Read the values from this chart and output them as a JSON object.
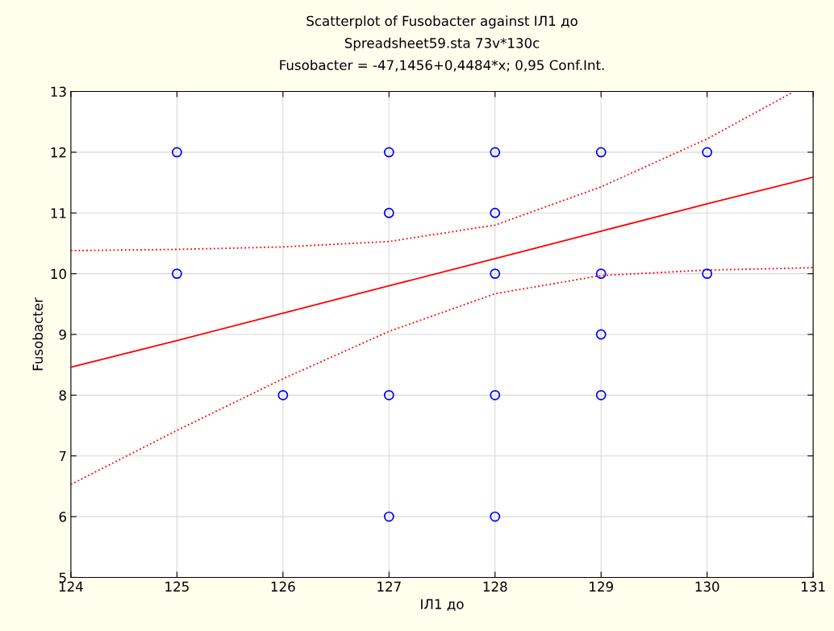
{
  "chart_data": {
    "type": "scatter",
    "title": "Scatterplot of Fusobacter against ІЛ1 до",
    "subtitle": "Spreadsheet59.sta 73v*130c",
    "annotations": [
      "Fusobacter = -47,1456+0,4484*x; 0,95 Conf.Int."
    ],
    "xlabel": "ІЛ1 до",
    "ylabel": "Fusobacter",
    "xlim": [
      124,
      131
    ],
    "xticks": [
      124,
      125,
      126,
      127,
      128,
      129,
      130,
      131
    ],
    "ylim": [
      5,
      13
    ],
    "yticks": [
      5,
      6,
      7,
      8,
      9,
      10,
      11,
      12,
      13
    ],
    "grid": true,
    "marker": "circle",
    "series": [
      {
        "color": "#0000ff",
        "x": [
          125,
          125,
          126,
          127,
          127,
          127,
          127,
          128,
          128,
          128,
          128,
          128,
          129,
          129,
          129,
          129,
          130,
          130
        ],
        "values": [
          12,
          10,
          8,
          12,
          11,
          8,
          6,
          12,
          11,
          10,
          8,
          6,
          12,
          10,
          9,
          8,
          12,
          10
        ]
      },
      {
        "type": "line",
        "color": "#ff0000",
        "line_style": "solid",
        "marker": "none",
        "x": [
          124,
          125,
          126,
          127,
          128,
          129,
          130,
          130.8,
          131
        ],
        "values": [
          8.46,
          8.9,
          9.35,
          9.8,
          10.25,
          10.7,
          11.15,
          11.5,
          11.59
        ]
      },
      {
        "type": "line",
        "color": "#ff0000",
        "line_style": "dotted",
        "marker": "none",
        "x": [
          124,
          125,
          126,
          127,
          128,
          129,
          130,
          130.8,
          131
        ],
        "values": [
          6.53,
          7.42,
          8.27,
          9.05,
          9.67,
          9.97,
          10.06,
          10.09,
          10.1
        ]
      },
      {
        "type": "line",
        "color": "#ff0000",
        "line_style": "dotted",
        "marker": "none",
        "x": [
          124,
          125,
          126,
          127,
          128,
          129,
          130,
          130.8
        ],
        "values": [
          10.38,
          10.4,
          10.44,
          10.53,
          10.8,
          11.43,
          12.22,
          12.98
        ]
      }
    ]
  }
}
